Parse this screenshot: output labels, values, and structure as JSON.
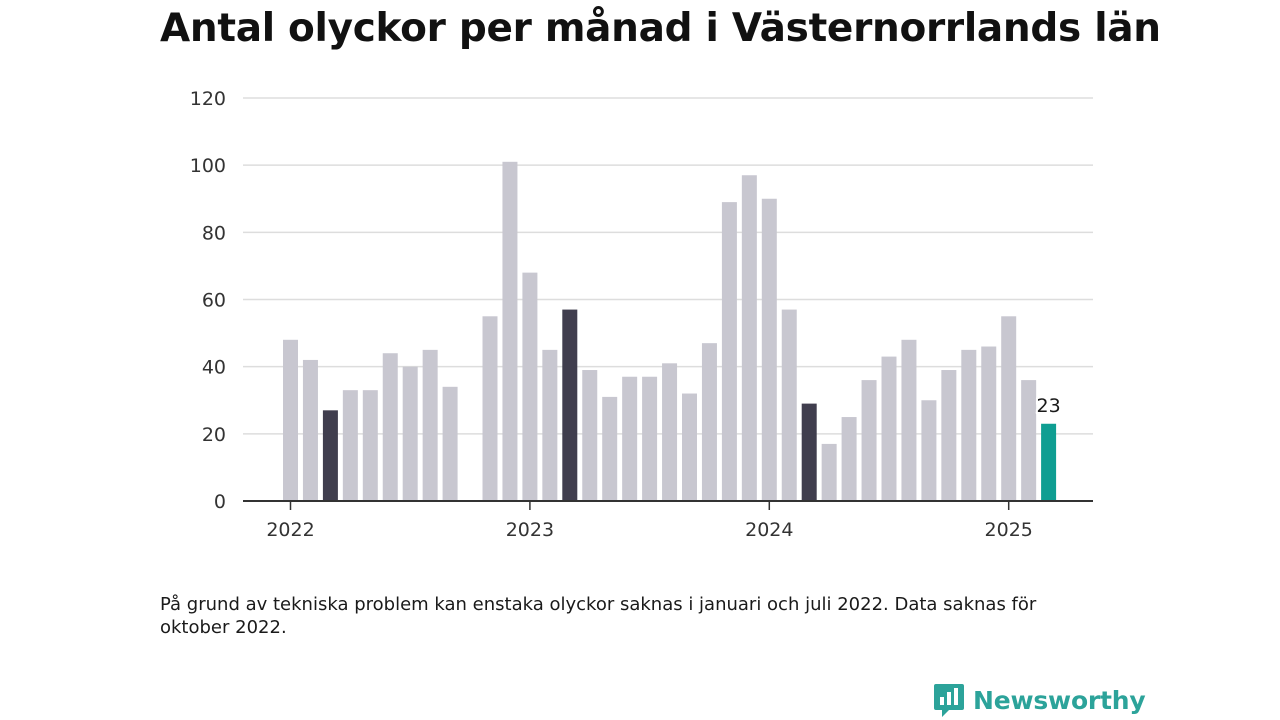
{
  "title": "Antal olyckor per månad i Västernorrlands län",
  "note": "På grund av tekniska problem kan enstaka olyckor saknas i januari och juli 2022. Data saknas för oktober 2022.",
  "brand": {
    "name": "Newsworthy",
    "icon": "newsworthy-logo-icon"
  },
  "colors": {
    "default_bar": "#c8c7d0",
    "highlight_bar": "#403e4e",
    "latest_bar": "#0f9e92",
    "grid": "#dddddd",
    "axis": "#333333",
    "brand": "#2ca39a"
  },
  "chart_data": {
    "type": "bar",
    "title": "Antal olyckor per månad i Västernorrlands län",
    "xlabel": "",
    "ylabel": "",
    "ylim": [
      0,
      120
    ],
    "yticks": [
      0,
      20,
      40,
      60,
      80,
      100,
      120
    ],
    "xtick_labels": [
      {
        "label": "2022",
        "category": "2022-01"
      },
      {
        "label": "2023",
        "category": "2023-01"
      },
      {
        "label": "2024",
        "category": "2024-01"
      },
      {
        "label": "2025",
        "category": "2025-01"
      }
    ],
    "grid": true,
    "legend": "none",
    "categories": [
      "2022-01",
      "2022-02",
      "2022-03",
      "2022-04",
      "2022-05",
      "2022-06",
      "2022-07",
      "2022-08",
      "2022-09",
      "2022-10",
      "2022-11",
      "2022-12",
      "2023-01",
      "2023-02",
      "2023-03",
      "2023-04",
      "2023-05",
      "2023-06",
      "2023-07",
      "2023-08",
      "2023-09",
      "2023-10",
      "2023-11",
      "2023-12",
      "2024-01",
      "2024-02",
      "2024-03",
      "2024-04",
      "2024-05",
      "2024-06",
      "2024-07",
      "2024-08",
      "2024-09",
      "2024-10",
      "2024-11",
      "2024-12",
      "2025-01",
      "2025-02",
      "2025-03"
    ],
    "values": [
      48,
      42,
      27,
      33,
      33,
      44,
      40,
      45,
      34,
      null,
      55,
      101,
      68,
      45,
      57,
      39,
      31,
      37,
      37,
      41,
      32,
      47,
      89,
      97,
      90,
      57,
      29,
      17,
      25,
      36,
      43,
      48,
      30,
      39,
      45,
      46,
      55,
      36,
      23
    ],
    "highlighted": [
      "2022-03",
      "2023-03",
      "2024-03"
    ],
    "latest": "2025-03",
    "data_labels": [
      {
        "category": "2025-03",
        "text": "23"
      }
    ]
  }
}
